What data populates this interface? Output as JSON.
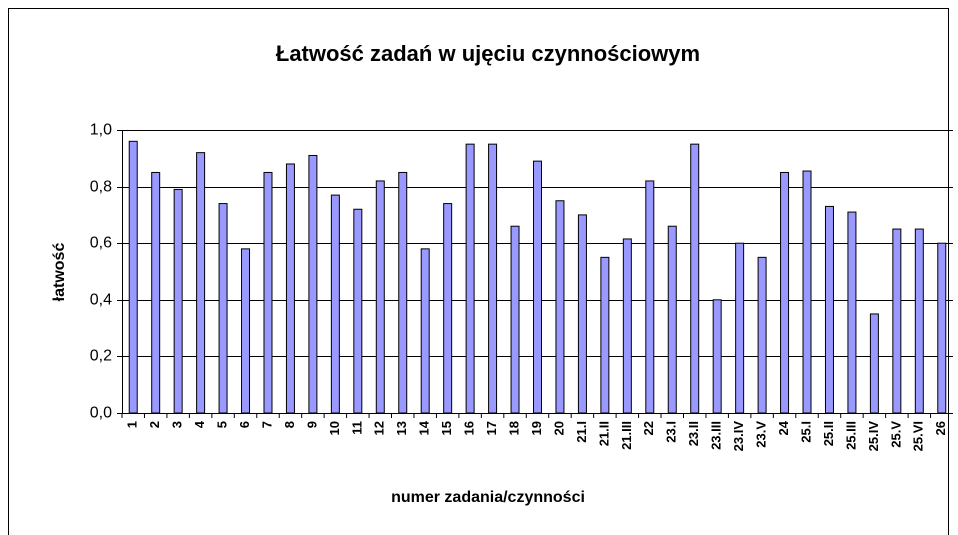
{
  "chart_data": {
    "type": "bar",
    "title": "Łatwość zadań w ujęciu czynnościowym",
    "x_label": "numer zadania/czynności",
    "y_label": "łatwość",
    "categories": [
      "1",
      "2",
      "3",
      "4",
      "5",
      "6",
      "7",
      "8",
      "9",
      "10",
      "11",
      "12",
      "13",
      "14",
      "15",
      "16",
      "17",
      "18",
      "19",
      "20",
      "21.I",
      "21.II",
      "21.III",
      "22",
      "23.I",
      "23.II",
      "23.III",
      "23.IV",
      "23.V",
      "24",
      "25.I",
      "25.II",
      "25.III",
      "25.IV",
      "25.V",
      "25.VI",
      "26"
    ],
    "values": [
      0.96,
      0.85,
      0.79,
      0.92,
      0.74,
      0.58,
      0.85,
      0.88,
      0.91,
      0.77,
      0.72,
      0.82,
      0.85,
      0.58,
      0.74,
      0.95,
      0.95,
      0.66,
      0.89,
      0.75,
      0.7,
      0.55,
      0.615,
      0.82,
      0.66,
      0.95,
      0.4,
      0.6,
      0.55,
      0.85,
      0.855,
      0.73,
      0.71,
      0.35,
      0.65,
      0.65,
      0.6
    ],
    "color": "#9999ff",
    "ylim": [
      0,
      1.0
    ],
    "yticks": [
      {
        "value": 0,
        "label": "0,0"
      },
      {
        "value": 0.2,
        "label": "0,2"
      },
      {
        "value": 0.4,
        "label": "0,4"
      },
      {
        "value": 0.6,
        "label": "0,6"
      },
      {
        "value": 0.8,
        "label": "0,8"
      },
      {
        "value": 1.0,
        "label": "1,0"
      }
    ],
    "grid": true
  }
}
